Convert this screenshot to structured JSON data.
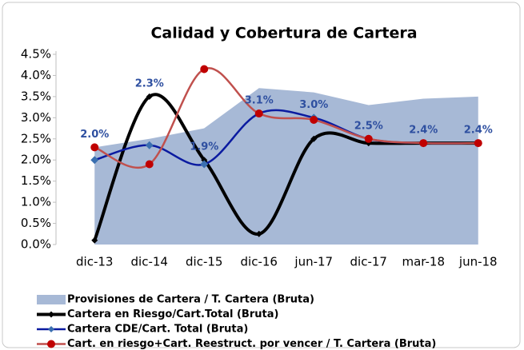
{
  "chart_data": {
    "type": "line",
    "title": "Calidad  y Cobertura  de Cartera",
    "categories": [
      "dic-13",
      "dic-14",
      "dic-15",
      "dic-16",
      "jun-17",
      "dic-17",
      "mar-18",
      "jun-18"
    ],
    "ylim": [
      0,
      4.5
    ],
    "yticks": [
      {
        "value": 0,
        "label": "0.0%"
      },
      {
        "value": 0.5,
        "label": "0.5%"
      },
      {
        "value": 1,
        "label": "1.0%"
      },
      {
        "value": 1.5,
        "label": "1.5%"
      },
      {
        "value": 2,
        "label": "2.0%"
      },
      {
        "value": 2.5,
        "label": "2.5%"
      },
      {
        "value": 3,
        "label": "3.0%"
      },
      {
        "value": 3.5,
        "label": "3.5%"
      },
      {
        "value": 4,
        "label": "4.0%"
      },
      {
        "value": 4.5,
        "label": "4.5%"
      }
    ],
    "series": [
      {
        "name": "Provisiones de Cartera / T. Cartera (Bruta)",
        "kind": "area",
        "color": "#a7b9d6",
        "values": [
          2.3,
          2.5,
          2.75,
          3.7,
          3.6,
          3.3,
          3.45,
          3.5
        ]
      },
      {
        "name": "Cartera en Riesgo/Cart.Total (Bruta)",
        "kind": "line",
        "color": "#000000",
        "values": [
          0.1,
          3.5,
          2.0,
          0.25,
          2.5,
          2.4,
          2.4,
          2.4
        ]
      },
      {
        "name": "Cartera CDE/Cart. Total (Bruta)",
        "kind": "line",
        "color": "#0a1aa0",
        "values": [
          2.0,
          2.35,
          1.9,
          3.1,
          3.0,
          2.5,
          2.4,
          2.4
        ],
        "value_labels": [
          "2.0%",
          "2.3%",
          "1.9%",
          "3.1%",
          "3.0%",
          "2.5%",
          "2.4%",
          "2.4%"
        ]
      },
      {
        "name": "Cart. en riesgo+Cart. Reestruct. por vencer / T. Cartera (Bruta)",
        "kind": "line",
        "color": "#c0504d",
        "values": [
          2.3,
          1.9,
          4.15,
          3.1,
          2.95,
          2.5,
          2.4,
          2.4
        ]
      }
    ]
  }
}
